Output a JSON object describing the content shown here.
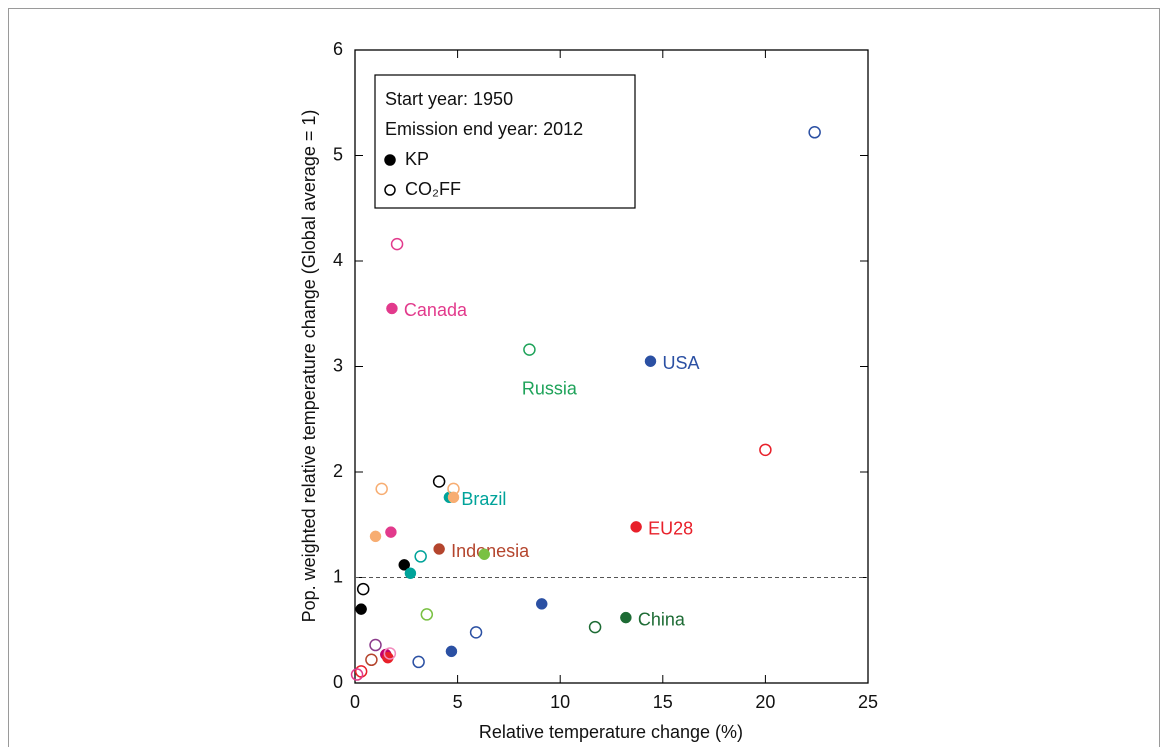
{
  "chart_data": {
    "type": "scatter",
    "xlabel": "Relative temperature change (%)",
    "ylabel": "Pop. weighted relative temperature change (Global average = 1)",
    "xlim": [
      0,
      25
    ],
    "xticks": [
      0,
      5,
      10,
      15,
      20,
      25
    ],
    "ylim": [
      0,
      6
    ],
    "yticks": [
      0,
      1,
      2,
      3,
      4,
      5,
      6
    ],
    "reference_line": 1,
    "legend_notes": [
      "Start year: 1950",
      "Emission end year: 2012"
    ],
    "legend_position": "upper left",
    "series": [
      {
        "name": "KP",
        "marker": "filled",
        "color": "#000000",
        "x": [
          14.4,
          1.8,
          13.7,
          4.6,
          4.1,
          13.2,
          2.4,
          0.3,
          1.0,
          4.8,
          1.75,
          2.7,
          6.3,
          9.1,
          4.7,
          1.5,
          1.6
        ],
        "y": [
          3.05,
          3.55,
          1.48,
          1.76,
          1.27,
          0.62,
          1.12,
          0.7,
          1.39,
          1.76,
          1.43,
          1.04,
          1.22,
          0.75,
          0.3,
          0.27,
          0.24
        ],
        "colors": [
          "#2b50a3",
          "#e23a8c",
          "#e8202a",
          "#00a39a",
          "#b4452d",
          "#1d6b34",
          "#000000",
          "#000000",
          "#f7ad72",
          "#f7ad72",
          "#e23a8c",
          "#00a39a",
          "#7ac143",
          "#2b50a3",
          "#2b50a3",
          "#c2006b",
          "#e8202a"
        ],
        "labels": [
          "USA",
          "Canada",
          "EU28",
          "Brazil",
          "Indonesia",
          "China",
          null,
          null,
          null,
          null,
          null,
          null,
          null,
          null,
          null,
          null,
          null
        ]
      },
      {
        "name": "CO₂FF",
        "marker": "open",
        "color": "#000000",
        "x": [
          22.4,
          2.05,
          8.5,
          20.0,
          3.2,
          11.7,
          4.1,
          0.4,
          1.3,
          4.8,
          3.5,
          5.9,
          3.1,
          1.7,
          1.0,
          0.8,
          0.3,
          0.1
        ],
        "y": [
          5.22,
          4.16,
          3.16,
          2.21,
          1.2,
          0.53,
          1.91,
          0.89,
          1.84,
          1.84,
          0.65,
          0.48,
          0.2,
          0.28,
          0.36,
          0.22,
          0.11,
          0.08
        ],
        "colors": [
          "#2b50a3",
          "#e23a8c",
          "#1fa35a",
          "#e8202a",
          "#00a39a",
          "#1d6b34",
          "#000000",
          "#000000",
          "#f7ad72",
          "#f7ad72",
          "#7ac143",
          "#2b50a3",
          "#2b50a3",
          "#f28bbd",
          "#8b3a8b",
          "#b4452d",
          "#e8202a",
          "#e23a8c"
        ],
        "labels": [
          null,
          null,
          "Russia",
          null,
          null,
          null,
          null,
          null,
          null,
          null,
          null,
          null,
          null,
          null,
          null,
          null,
          null,
          null
        ]
      }
    ]
  }
}
